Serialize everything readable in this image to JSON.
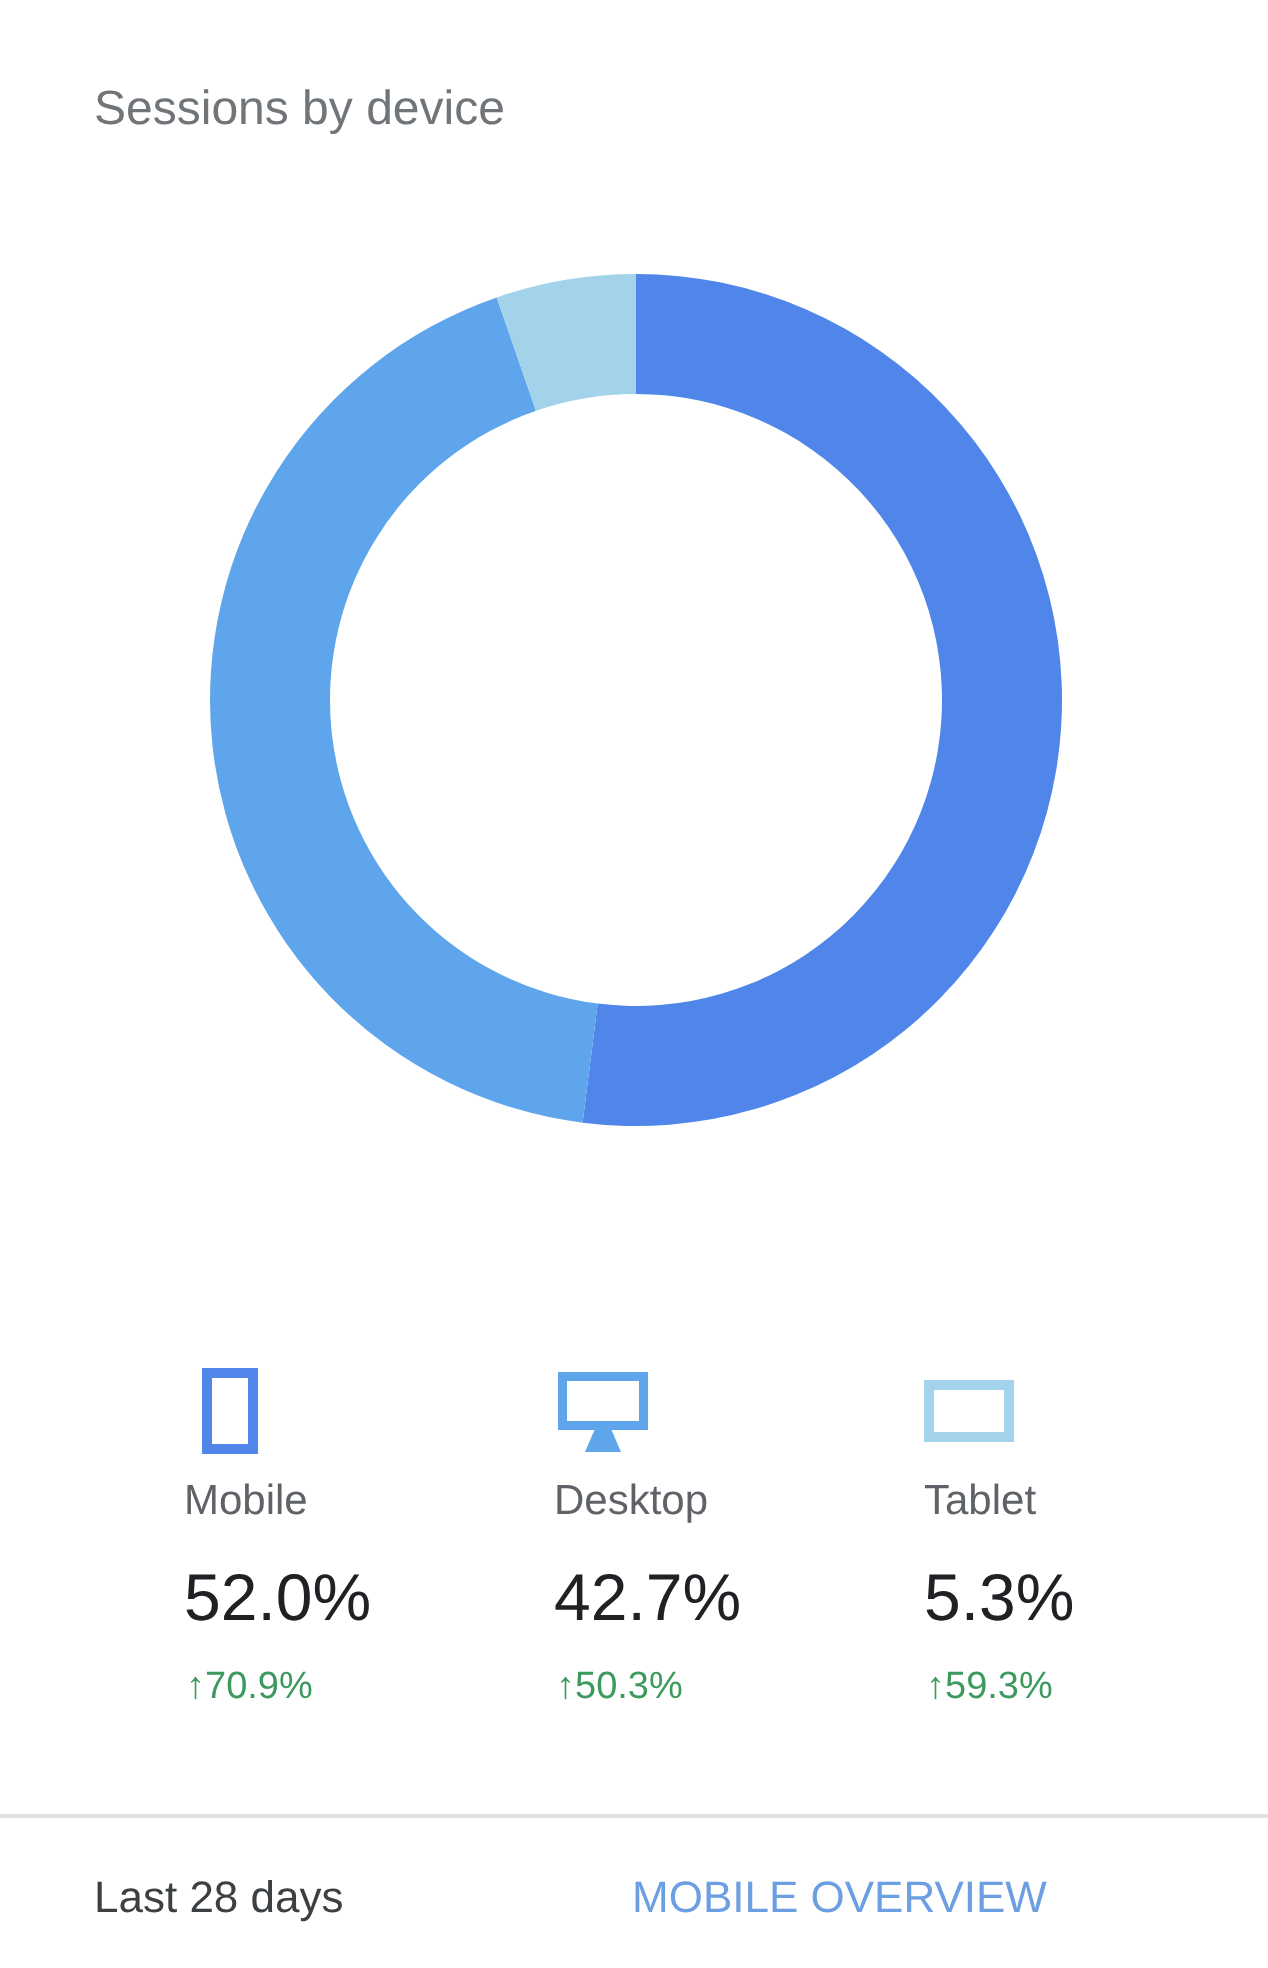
{
  "chart_data": {
    "type": "donut",
    "title": "Sessions by device",
    "categories": [
      "Mobile",
      "Desktop",
      "Tablet"
    ],
    "values": [
      52.0,
      42.7,
      5.3
    ],
    "colors": [
      "#5086ea",
      "#5fa5ec",
      "#a2d3ea"
    ],
    "value_labels": [
      "52.0%",
      "42.7%",
      "5.3%"
    ],
    "legend": "bottom",
    "annotations": [
      "↑70.9%",
      "↑50.3%",
      "↑59.3%",
      "Last 28 days",
      "MOBILE OVERVIEW"
    ]
  }
}
